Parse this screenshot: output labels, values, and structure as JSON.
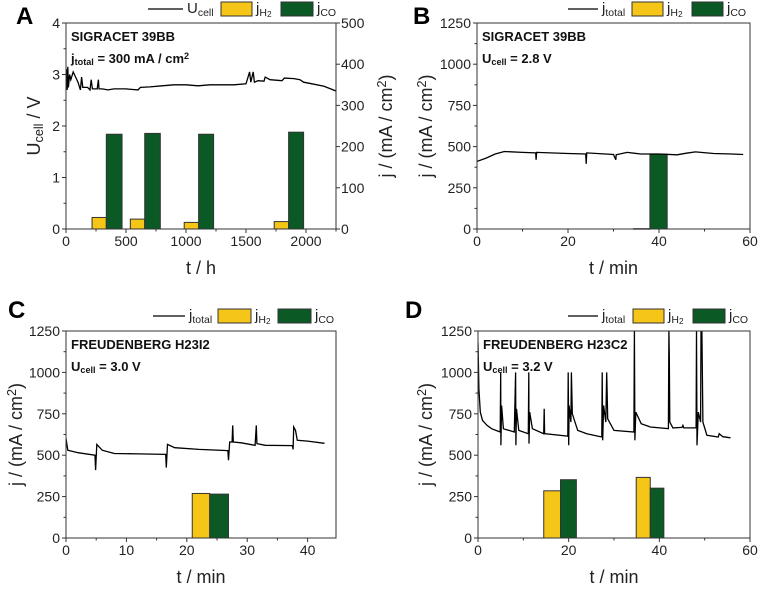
{
  "colors": {
    "h2": "#f5c518",
    "co": "#0b5a26",
    "line": "#000000",
    "axis": "#333333"
  },
  "chart_data": [
    {
      "panel": "A",
      "type": "line+bar",
      "annotation": [
        [
          {
            "t": "SIGRACET 39BB"
          }
        ],
        [
          {
            "t": "j"
          },
          {
            "t": "total",
            "sub": true
          },
          {
            "t": " = 300 mA / cm"
          },
          {
            "t": "2",
            "sup": true
          }
        ]
      ],
      "legend": [
        {
          "kind": "line",
          "parts": [
            {
              "t": "U"
            },
            {
              "t": "cell",
              "sub": true
            }
          ]
        },
        {
          "kind": "h2",
          "parts": [
            {
              "t": "j"
            },
            {
              "t": "H",
              "sub": true
            },
            {
              "t": "2",
              "sub2": true
            }
          ]
        },
        {
          "kind": "co",
          "parts": [
            {
              "t": "j"
            },
            {
              "t": "CO",
              "sub": true
            }
          ]
        }
      ],
      "xlabel": [
        {
          "t": "t / h"
        }
      ],
      "ylabel": [
        {
          "t": "U"
        },
        {
          "t": "cell",
          "sub": true
        },
        {
          "t": " / V"
        }
      ],
      "y2label": [
        {
          "t": "j / (mA / cm"
        },
        {
          "t": "2",
          "sup": true
        },
        {
          "t": ")"
        }
      ],
      "xlim": [
        0,
        2250
      ],
      "xticks": [
        0,
        500,
        1000,
        1500,
        2000
      ],
      "xminor": 250,
      "ylim": [
        0,
        4
      ],
      "yticks": [
        0,
        1,
        2,
        3,
        4
      ],
      "yminor": 0.5,
      "y2lim": [
        0,
        500
      ],
      "y2ticks": [
        0,
        100,
        200,
        300,
        400,
        500
      ],
      "line": {
        "name": "Ucell",
        "points": [
          [
            0,
            2.7
          ],
          [
            5,
            3.1
          ],
          [
            10,
            2.7
          ],
          [
            15,
            3.15
          ],
          [
            20,
            2.75
          ],
          [
            30,
            3.0
          ],
          [
            40,
            2.9
          ],
          [
            60,
            3.05
          ],
          [
            80,
            2.95
          ],
          [
            100,
            2.85
          ],
          [
            120,
            2.7
          ],
          [
            130,
            2.95
          ],
          [
            140,
            2.75
          ],
          [
            180,
            2.75
          ],
          [
            200,
            2.7
          ],
          [
            210,
            2.9
          ],
          [
            220,
            2.72
          ],
          [
            260,
            2.72
          ],
          [
            270,
            2.9
          ],
          [
            275,
            2.72
          ],
          [
            300,
            2.72
          ],
          [
            350,
            2.7
          ],
          [
            400,
            2.72
          ],
          [
            500,
            2.72
          ],
          [
            600,
            2.7
          ],
          [
            620,
            2.75
          ],
          [
            700,
            2.76
          ],
          [
            800,
            2.78
          ],
          [
            900,
            2.8
          ],
          [
            1000,
            2.8
          ],
          [
            1100,
            2.78
          ],
          [
            1200,
            2.8
          ],
          [
            1300,
            2.8
          ],
          [
            1400,
            2.8
          ],
          [
            1500,
            2.82
          ],
          [
            1530,
            3.05
          ],
          [
            1540,
            2.85
          ],
          [
            1560,
            3.05
          ],
          [
            1570,
            2.85
          ],
          [
            1600,
            2.88
          ],
          [
            1650,
            2.87
          ],
          [
            1660,
            2.95
          ],
          [
            1700,
            2.9
          ],
          [
            1800,
            2.88
          ],
          [
            1820,
            2.93
          ],
          [
            1900,
            2.92
          ],
          [
            1950,
            2.9
          ],
          [
            1980,
            2.85
          ],
          [
            2050,
            2.82
          ],
          [
            2150,
            2.77
          ],
          [
            2250,
            2.68
          ]
        ]
      },
      "bars_axis": "y2",
      "bars": [
        {
          "series": "jH2",
          "start": 217,
          "end": 336,
          "value": 28
        },
        {
          "series": "jCO",
          "start": 336,
          "end": 467,
          "value": 230
        },
        {
          "series": "jH2",
          "start": 536,
          "end": 656,
          "value": 24
        },
        {
          "series": "jCO",
          "start": 656,
          "end": 786,
          "value": 232
        },
        {
          "series": "jH2",
          "start": 985,
          "end": 1105,
          "value": 16
        },
        {
          "series": "jCO",
          "start": 1105,
          "end": 1230,
          "value": 230
        },
        {
          "series": "jH2",
          "start": 1735,
          "end": 1855,
          "value": 18
        },
        {
          "series": "jCO",
          "start": 1855,
          "end": 1980,
          "value": 235
        }
      ]
    },
    {
      "panel": "B",
      "type": "line+bar",
      "annotation": [
        [
          {
            "t": "SIGRACET 39BB"
          }
        ],
        [
          {
            "t": "U"
          },
          {
            "t": "cell",
            "sub": true
          },
          {
            "t": " = 2.8 V"
          }
        ]
      ],
      "legend": [
        {
          "kind": "line",
          "parts": [
            {
              "t": "j"
            },
            {
              "t": "total",
              "sub": true
            }
          ]
        },
        {
          "kind": "h2",
          "parts": [
            {
              "t": "j"
            },
            {
              "t": "H",
              "sub": true
            },
            {
              "t": "2",
              "sub2": true
            }
          ]
        },
        {
          "kind": "co",
          "parts": [
            {
              "t": "j"
            },
            {
              "t": "CO",
              "sub": true
            }
          ]
        }
      ],
      "xlabel": [
        {
          "t": "t / min"
        }
      ],
      "ylabel": [
        {
          "t": "j / (mA / cm"
        },
        {
          "t": "2",
          "sup": true
        },
        {
          "t": ")"
        }
      ],
      "xlim": [
        0,
        60
      ],
      "xticks": [
        0,
        20,
        40,
        60
      ],
      "xminor": 10,
      "ylim": [
        0,
        1250
      ],
      "yticks": [
        0,
        250,
        500,
        750,
        1000,
        1250
      ],
      "yminor": 125,
      "line": {
        "name": "jtotal",
        "points": [
          [
            0,
            410
          ],
          [
            2,
            430
          ],
          [
            4,
            455
          ],
          [
            6,
            470
          ],
          [
            10,
            465
          ],
          [
            12.9,
            462
          ],
          [
            13,
            420
          ],
          [
            13.1,
            465
          ],
          [
            20,
            458
          ],
          [
            23.9,
            455
          ],
          [
            24,
            395
          ],
          [
            24.1,
            462
          ],
          [
            30,
            452
          ],
          [
            30.5,
            420
          ],
          [
            30.6,
            450
          ],
          [
            33,
            465
          ],
          [
            36,
            455
          ],
          [
            40,
            455
          ],
          [
            44,
            450
          ],
          [
            46,
            460
          ],
          [
            48,
            468
          ],
          [
            52,
            458
          ],
          [
            56,
            455
          ],
          [
            58.5,
            452
          ]
        ]
      },
      "bars_axis": "y",
      "bars": [
        {
          "series": "jH2",
          "start": 34.4,
          "end": 38,
          "value": 2
        },
        {
          "series": "jCO",
          "start": 38,
          "end": 41.8,
          "value": 454
        }
      ]
    },
    {
      "panel": "C",
      "type": "line+bar",
      "annotation": [
        [
          {
            "t": "FREUDENBERG H23I2"
          }
        ],
        [
          {
            "t": "U"
          },
          {
            "t": "cell",
            "sub": true
          },
          {
            "t": " = 3.0 V"
          }
        ]
      ],
      "legend": [
        {
          "kind": "line",
          "parts": [
            {
              "t": "j"
            },
            {
              "t": "total",
              "sub": true
            }
          ]
        },
        {
          "kind": "h2",
          "parts": [
            {
              "t": "j"
            },
            {
              "t": "H",
              "sub": true
            },
            {
              "t": "2",
              "sub2": true
            }
          ]
        },
        {
          "kind": "co",
          "parts": [
            {
              "t": "j"
            },
            {
              "t": "CO",
              "sub": true
            }
          ]
        }
      ],
      "xlabel": [
        {
          "t": "t / min"
        }
      ],
      "ylabel": [
        {
          "t": "j / (mA / cm"
        },
        {
          "t": "2",
          "sup": true
        },
        {
          "t": ")"
        }
      ],
      "xlim": [
        0,
        44.7
      ],
      "xticks": [
        0,
        10,
        20,
        30,
        40
      ],
      "xminor": 5,
      "ylim": [
        0,
        1250
      ],
      "yticks": [
        0,
        250,
        500,
        750,
        1000,
        1250
      ],
      "yminor": 125,
      "line": {
        "name": "jtotal",
        "points": [
          [
            0,
            600
          ],
          [
            0.3,
            530
          ],
          [
            2,
            515
          ],
          [
            4.8,
            500
          ],
          [
            4.9,
            410
          ],
          [
            5.1,
            565
          ],
          [
            6,
            530
          ],
          [
            8,
            510
          ],
          [
            12,
            508
          ],
          [
            16.5,
            505
          ],
          [
            16.6,
            425
          ],
          [
            16.8,
            565
          ],
          [
            18,
            545
          ],
          [
            22,
            535
          ],
          [
            26.8,
            528
          ],
          [
            26.9,
            470
          ],
          [
            27.1,
            580
          ],
          [
            27.5,
            580
          ],
          [
            27.6,
            680
          ],
          [
            27.7,
            580
          ],
          [
            29,
            575
          ],
          [
            31.3,
            560
          ],
          [
            31.5,
            680
          ],
          [
            31.6,
            570
          ],
          [
            33,
            560
          ],
          [
            37.5,
            558
          ],
          [
            37.6,
            535
          ],
          [
            37.7,
            670
          ],
          [
            38,
            650
          ],
          [
            38.3,
            590
          ],
          [
            40,
            585
          ],
          [
            42.8,
            572
          ]
        ]
      },
      "bars_axis": "y",
      "bars": [
        {
          "series": "jH2",
          "start": 20.9,
          "end": 23.8,
          "value": 269
        },
        {
          "series": "jCO",
          "start": 23.8,
          "end": 26.9,
          "value": 265
        }
      ]
    },
    {
      "panel": "D",
      "type": "line+bar",
      "annotation": [
        [
          {
            "t": "FREUDENBERG H23C2"
          }
        ],
        [
          {
            "t": "U"
          },
          {
            "t": "cell",
            "sub": true
          },
          {
            "t": " = 3.2 V"
          }
        ]
      ],
      "legend": [
        {
          "kind": "line",
          "parts": [
            {
              "t": "j"
            },
            {
              "t": "total",
              "sub": true
            }
          ]
        },
        {
          "kind": "h2",
          "parts": [
            {
              "t": "j"
            },
            {
              "t": "H",
              "sub": true
            },
            {
              "t": "2",
              "sub2": true
            }
          ]
        },
        {
          "kind": "co",
          "parts": [
            {
              "t": "j"
            },
            {
              "t": "CO",
              "sub": true
            }
          ]
        }
      ],
      "xlabel": [
        {
          "t": "t / min"
        }
      ],
      "ylabel": [
        {
          "t": "j / (mA / cm"
        },
        {
          "t": "2",
          "sup": true
        },
        {
          "t": ")"
        }
      ],
      "xlim": [
        0,
        60
      ],
      "xticks": [
        0,
        20,
        40,
        60
      ],
      "xminor": 10,
      "ylim": [
        0,
        1250
      ],
      "yticks": [
        0,
        250,
        500,
        750,
        1000,
        1250
      ],
      "yminor": 125,
      "line": {
        "name": "jtotal",
        "points": [
          [
            0,
            1180
          ],
          [
            0.2,
            900
          ],
          [
            0.5,
            760
          ],
          [
            1,
            710
          ],
          [
            2,
            680
          ],
          [
            3,
            660
          ],
          [
            4.9,
            640
          ],
          [
            5,
            1000
          ],
          [
            5.05,
            560
          ],
          [
            5.2,
            800
          ],
          [
            5.6,
            660
          ],
          [
            8,
            640
          ],
          [
            8.3,
            1000
          ],
          [
            8.35,
            560
          ],
          [
            8.5,
            780
          ],
          [
            9,
            650
          ],
          [
            11.1,
            630
          ],
          [
            11.2,
            1000
          ],
          [
            11.25,
            570
          ],
          [
            11.4,
            760
          ],
          [
            12,
            660
          ],
          [
            14.5,
            630
          ],
          [
            14.6,
            780
          ],
          [
            14.7,
            630
          ],
          [
            19.8,
            615
          ],
          [
            19.9,
            1000
          ],
          [
            20,
            560
          ],
          [
            20.1,
            800
          ],
          [
            20.5,
            700
          ],
          [
            20.6,
            1000
          ],
          [
            20.8,
            750
          ],
          [
            22,
            650
          ],
          [
            24,
            630
          ],
          [
            27.3,
            610
          ],
          [
            27.4,
            1000
          ],
          [
            27.5,
            590
          ],
          [
            27.7,
            800
          ],
          [
            28.2,
            700
          ],
          [
            28.4,
            1000
          ],
          [
            28.6,
            720
          ],
          [
            30,
            650
          ],
          [
            34.4,
            640
          ],
          [
            34.5,
            1250
          ],
          [
            34.6,
            590
          ],
          [
            34.8,
            760
          ],
          [
            36,
            690
          ],
          [
            38,
            670
          ],
          [
            42,
            660
          ],
          [
            42.1,
            1250
          ],
          [
            42.2,
            1100
          ],
          [
            42.3,
            700
          ],
          [
            43,
            665
          ],
          [
            45,
            668
          ],
          [
            45.2,
            680
          ],
          [
            45.4,
            665
          ],
          [
            48.1,
            665
          ],
          [
            48.2,
            1250
          ],
          [
            48.3,
            560
          ],
          [
            48.6,
            760
          ],
          [
            49.1,
            700
          ],
          [
            49.2,
            1250
          ],
          [
            49.4,
            1250
          ],
          [
            49.6,
            700
          ],
          [
            50.5,
            620
          ],
          [
            53,
            610
          ],
          [
            53.2,
            630
          ],
          [
            54,
            612
          ],
          [
            55.7,
            605
          ]
        ]
      },
      "bars_axis": "y",
      "bars": [
        {
          "series": "jH2",
          "start": 14.5,
          "end": 18.2,
          "value": 285
        },
        {
          "series": "jCO",
          "start": 18.2,
          "end": 21.7,
          "value": 352
        },
        {
          "series": "jH2",
          "start": 34.9,
          "end": 38,
          "value": 366
        },
        {
          "series": "jCO",
          "start": 38,
          "end": 41,
          "value": 301
        }
      ]
    }
  ]
}
